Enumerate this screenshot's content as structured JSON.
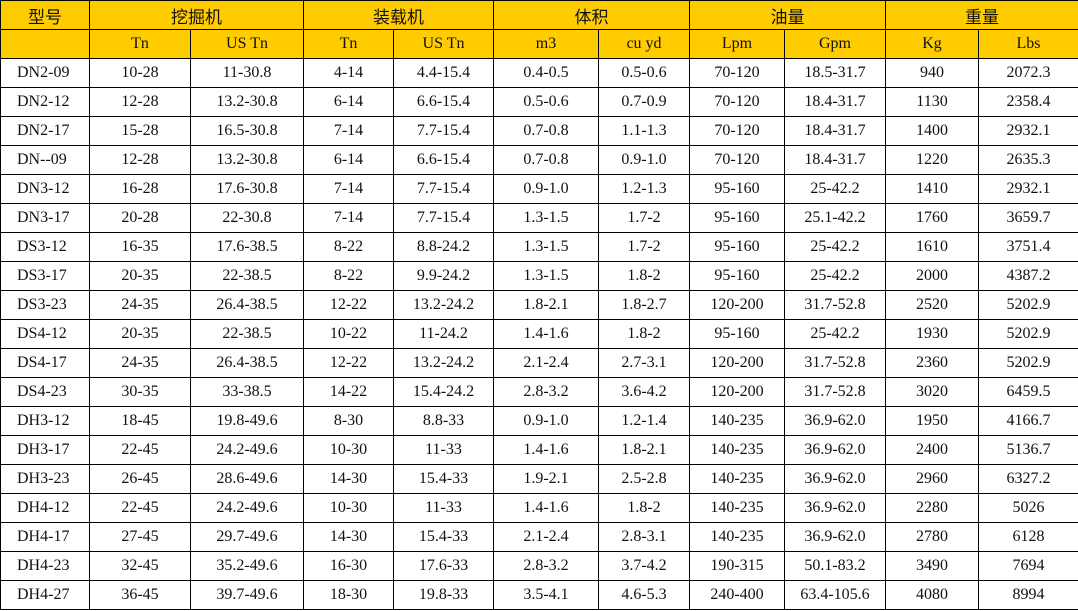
{
  "colors": {
    "header_bg": "#FFCC00",
    "border": "#000000"
  },
  "table": {
    "groups": [
      {
        "label": "型号",
        "span": 1
      },
      {
        "label": "挖掘机",
        "span": 2
      },
      {
        "label": "装载机",
        "span": 2
      },
      {
        "label": "体积",
        "span": 2
      },
      {
        "label": "油量",
        "span": 2
      },
      {
        "label": "重量",
        "span": 2
      }
    ],
    "units": [
      "",
      "Tn",
      "US Tn",
      "Tn",
      "US Tn",
      "m3",
      "cu yd",
      "Lpm",
      "Gpm",
      "Kg",
      "Lbs"
    ],
    "rows": [
      [
        "DN2-09",
        "10-28",
        "11-30.8",
        "4-14",
        "4.4-15.4",
        "0.4-0.5",
        "0.5-0.6",
        "70-120",
        "18.5-31.7",
        "940",
        "2072.3"
      ],
      [
        "DN2-12",
        "12-28",
        "13.2-30.8",
        "6-14",
        "6.6-15.4",
        "0.5-0.6",
        "0.7-0.9",
        "70-120",
        "18.4-31.7",
        "1130",
        "2358.4"
      ],
      [
        "DN2-17",
        "15-28",
        "16.5-30.8",
        "7-14",
        "7.7-15.4",
        "0.7-0.8",
        "1.1-1.3",
        "70-120",
        "18.4-31.7",
        "1400",
        "2932.1"
      ],
      [
        "DN--09",
        "12-28",
        "13.2-30.8",
        "6-14",
        "6.6-15.4",
        "0.7-0.8",
        "0.9-1.0",
        "70-120",
        "18.4-31.7",
        "1220",
        "2635.3"
      ],
      [
        "DN3-12",
        "16-28",
        "17.6-30.8",
        "7-14",
        "7.7-15.4",
        "0.9-1.0",
        "1.2-1.3",
        "95-160",
        "25-42.2",
        "1410",
        "2932.1"
      ],
      [
        "DN3-17",
        "20-28",
        "22-30.8",
        "7-14",
        "7.7-15.4",
        "1.3-1.5",
        "1.7-2",
        "95-160",
        "25.1-42.2",
        "1760",
        "3659.7"
      ],
      [
        "DS3-12",
        "16-35",
        "17.6-38.5",
        "8-22",
        "8.8-24.2",
        "1.3-1.5",
        "1.7-2",
        "95-160",
        "25-42.2",
        "1610",
        "3751.4"
      ],
      [
        "DS3-17",
        "20-35",
        "22-38.5",
        "8-22",
        "9.9-24.2",
        "1.3-1.5",
        "1.8-2",
        "95-160",
        "25-42.2",
        "2000",
        "4387.2"
      ],
      [
        "DS3-23",
        "24-35",
        "26.4-38.5",
        "12-22",
        "13.2-24.2",
        "1.8-2.1",
        "1.8-2.7",
        "120-200",
        "31.7-52.8",
        "2520",
        "5202.9"
      ],
      [
        "DS4-12",
        "20-35",
        "22-38.5",
        "10-22",
        "11-24.2",
        "1.4-1.6",
        "1.8-2",
        "95-160",
        "25-42.2",
        "1930",
        "5202.9"
      ],
      [
        "DS4-17",
        "24-35",
        "26.4-38.5",
        "12-22",
        "13.2-24.2",
        "2.1-2.4",
        "2.7-3.1",
        "120-200",
        "31.7-52.8",
        "2360",
        "5202.9"
      ],
      [
        "DS4-23",
        "30-35",
        "33-38.5",
        "14-22",
        "15.4-24.2",
        "2.8-3.2",
        "3.6-4.2",
        "120-200",
        "31.7-52.8",
        "3020",
        "6459.5"
      ],
      [
        "DH3-12",
        "18-45",
        "19.8-49.6",
        "8-30",
        "8.8-33",
        "0.9-1.0",
        "1.2-1.4",
        "140-235",
        "36.9-62.0",
        "1950",
        "4166.7"
      ],
      [
        "DH3-17",
        "22-45",
        "24.2-49.6",
        "10-30",
        "11-33",
        "1.4-1.6",
        "1.8-2.1",
        "140-235",
        "36.9-62.0",
        "2400",
        "5136.7"
      ],
      [
        "DH3-23",
        "26-45",
        "28.6-49.6",
        "14-30",
        "15.4-33",
        "1.9-2.1",
        "2.5-2.8",
        "140-235",
        "36.9-62.0",
        "2960",
        "6327.2"
      ],
      [
        "DH4-12",
        "22-45",
        "24.2-49.6",
        "10-30",
        "11-33",
        "1.4-1.6",
        "1.8-2",
        "140-235",
        "36.9-62.0",
        "2280",
        "5026"
      ],
      [
        "DH4-17",
        "27-45",
        "29.7-49.6",
        "14-30",
        "15.4-33",
        "2.1-2.4",
        "2.8-3.1",
        "140-235",
        "36.9-62.0",
        "2780",
        "6128"
      ],
      [
        "DH4-23",
        "32-45",
        "35.2-49.6",
        "16-30",
        "17.6-33",
        "2.8-3.2",
        "3.7-4.2",
        "190-315",
        "50.1-83.2",
        "3490",
        "7694"
      ],
      [
        "DH4-27",
        "36-45",
        "39.7-49.6",
        "18-30",
        "19.8-33",
        "3.5-4.1",
        "4.6-5.3",
        "240-400",
        "63.4-105.6",
        "4080",
        "8994"
      ]
    ]
  }
}
